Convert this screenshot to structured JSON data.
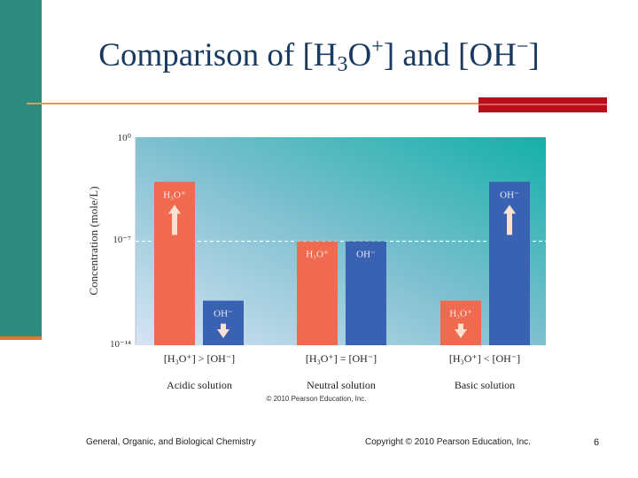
{
  "slide": {
    "title_prefix": "Comparison of [H",
    "title_sub": "3",
    "title_mid": "O",
    "title_sup1": "+",
    "title_mid2": "] and [OH",
    "title_sup2": "−",
    "title_suffix": "]",
    "footer_left": "General, Organic, and Biological Chemistry",
    "footer_center": "Copyright © 2010 Pearson Education, Inc.",
    "page_number": "6"
  },
  "colors": {
    "h3o_bar": "#f06a50",
    "oh_bar": "#3a62b2",
    "sidebar": "#2f8a80",
    "accent": "#b51019",
    "title": "#1a3a60"
  },
  "chart_data": {
    "type": "bar",
    "ylabel": "Concentration (mole/L)",
    "y_scale": "log",
    "yticks": [
      "10⁰",
      "10⁻⁷",
      "10⁻¹⁴"
    ],
    "ylim": [
      1e-14,
      1
    ],
    "reference_line": 1e-07,
    "categories": [
      "Acidic solution",
      "Neutral solution",
      "Basic solution"
    ],
    "comparisons": [
      "[H₃O⁺] > [OH⁻]",
      "[H₃O⁺] = [OH⁻]",
      "[H₃O⁺] < [OH⁻]"
    ],
    "series": [
      {
        "name": "H₃O⁺",
        "values": [
          0.001,
          1e-07,
          1e-11
        ],
        "arrows": [
          "up",
          "none",
          "down"
        ]
      },
      {
        "name": "OH⁻",
        "values": [
          1e-11,
          1e-07,
          0.001
        ],
        "arrows": [
          "down",
          "none",
          "up"
        ]
      }
    ],
    "credit": "© 2010 Pearson Education, Inc."
  }
}
